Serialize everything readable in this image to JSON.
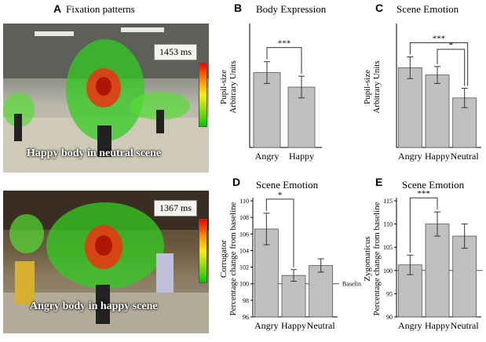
{
  "panel_a": {
    "letter": "A",
    "title": "Fixation patterns",
    "photo1": {
      "caption": "Happy body in neutral scene",
      "time": "1453 ms"
    },
    "photo2": {
      "caption": "Angry body in happy scene",
      "time": "1367 ms"
    }
  },
  "panels": {
    "B": {
      "letter": "B",
      "title": "Body Expression"
    },
    "C": {
      "letter": "C",
      "title": "Scene Emotion"
    },
    "D": {
      "letter": "D",
      "title": "Scene Emotion"
    },
    "E": {
      "letter": "E",
      "title": "Scene Emotion"
    }
  },
  "colors": {
    "bar": "#c0c0c0",
    "stroke": "#555555"
  },
  "chart_data": [
    {
      "id": "B",
      "type": "bar",
      "title": "Body Expression",
      "ylabel_lines": [
        "Pupil-size",
        "Arbitrary Units"
      ],
      "categories": [
        "Angry",
        "Happy"
      ],
      "values": [
        0.62,
        0.5
      ],
      "errors": [
        0.09,
        0.09
      ],
      "ylim": [
        0,
        1
      ],
      "yticks": [],
      "significance": [
        {
          "from": 0,
          "to": 1,
          "label": "***"
        }
      ]
    },
    {
      "id": "C",
      "type": "bar",
      "title": "Scene Emotion",
      "ylabel_lines": [
        "Pupil-size",
        "Arbitrary Units"
      ],
      "categories": [
        "Angry",
        "Happy",
        "Neutral"
      ],
      "values": [
        0.66,
        0.6,
        0.41
      ],
      "errors": [
        0.09,
        0.07,
        0.08
      ],
      "ylim": [
        0,
        1
      ],
      "yticks": [],
      "significance": [
        {
          "from": 0,
          "to": 2,
          "label": "***"
        },
        {
          "from": 1,
          "to": 2,
          "label": "*"
        }
      ]
    },
    {
      "id": "D",
      "type": "bar",
      "title": "Scene Emotion",
      "ylabel_lines": [
        "Corrugator",
        "Percentage change from baseline"
      ],
      "categories": [
        "Angry",
        "Happy",
        "Neutral"
      ],
      "values": [
        106.6,
        101.0,
        102.2
      ],
      "errors": [
        1.9,
        0.7,
        0.8
      ],
      "ylim": [
        96,
        110
      ],
      "yticks": [
        96,
        98,
        100,
        102,
        104,
        106,
        108,
        110
      ],
      "baseline": 100,
      "baseline_label": "Baseline",
      "significance": [
        {
          "from": 0,
          "to": 1,
          "label": "*"
        }
      ]
    },
    {
      "id": "E",
      "type": "bar",
      "title": "Scene Emotion",
      "ylabel_lines": [
        "Zygomaticus",
        "Percentage change from baseline"
      ],
      "categories": [
        "Angry",
        "Happy",
        "Neutral"
      ],
      "values": [
        101.2,
        110.0,
        107.4
      ],
      "errors": [
        2.1,
        2.6,
        2.6
      ],
      "ylim": [
        90,
        115
      ],
      "yticks": [
        90,
        95,
        100,
        105,
        110,
        115
      ],
      "baseline": 100,
      "significance": [
        {
          "from": 0,
          "to": 1,
          "label": "***"
        }
      ]
    }
  ]
}
